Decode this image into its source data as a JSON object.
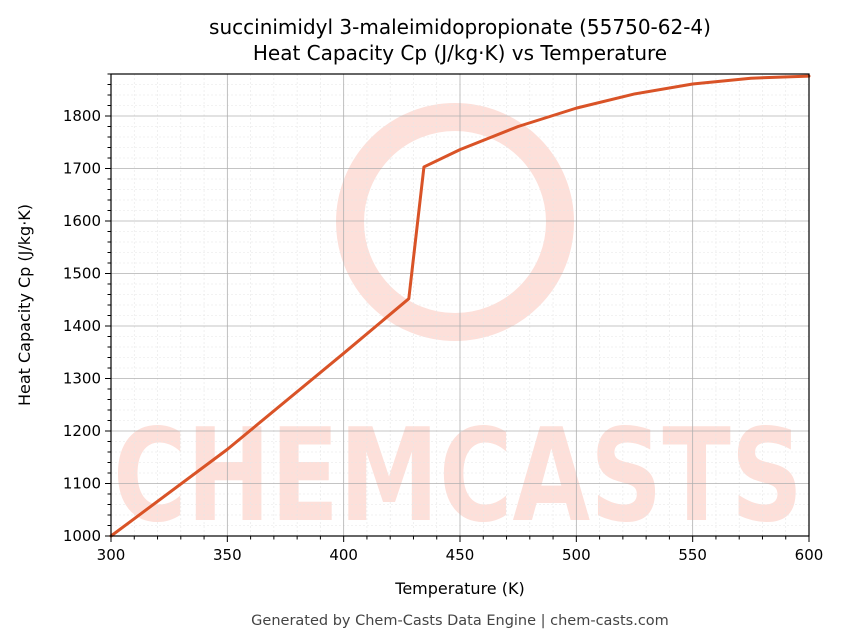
{
  "colors": {
    "line": "#d95327",
    "watermark": "#fde0da",
    "grid_major": "#b0b0b0",
    "grid_minor": "#e6e6e6",
    "footer": "#444444"
  },
  "watermark": {
    "text": "CHEMCASTS"
  },
  "footer": {
    "text": "Generated by Chem-Casts Data Engine | chem-casts.com"
  },
  "chart_data": {
    "type": "line",
    "title": "succinimidyl 3-maleimidopropionate (55750-62-4)",
    "subtitle": "Heat Capacity Cp (J/kg·K) vs Temperature",
    "xlabel": "Temperature (K)",
    "ylabel": "Heat Capacity Cp (J/kg·K)",
    "xlim": [
      300,
      600
    ],
    "ylim": [
      1000,
      1880
    ],
    "xticks": [
      300,
      350,
      400,
      450,
      500,
      550,
      600
    ],
    "yticks": [
      1000,
      1100,
      1200,
      1300,
      1400,
      1500,
      1600,
      1700,
      1800
    ],
    "grid": true,
    "minor_grid": true,
    "series": [
      {
        "x": [
          300,
          350,
          400,
          428,
          434.5,
          450,
          475,
          500,
          525,
          550,
          575,
          600
        ],
        "y": [
          1000,
          1165,
          1348,
          1452,
          1703,
          1736,
          1780,
          1815,
          1842,
          1861,
          1872,
          1876
        ]
      }
    ]
  }
}
